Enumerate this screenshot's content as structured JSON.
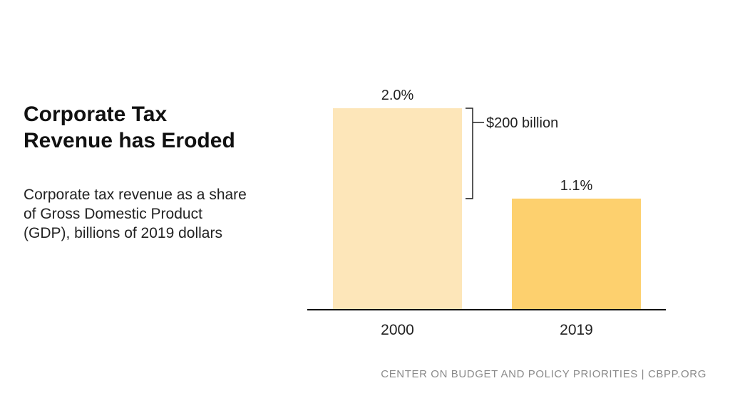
{
  "title": "Corporate Tax Revenue has Eroded",
  "subtitle": "Corporate tax revenue as a share of Gross Domestic Product (GDP), billions of 2019 dollars",
  "footer": "CENTER ON BUDGET AND POLICY PRIORITIES | CBPP.ORG",
  "colors": {
    "bar_2000": "#fde6b9",
    "bar_2019": "#fdd06e",
    "text": "#222222",
    "axis": "#111111"
  },
  "chart_data": {
    "type": "bar",
    "title": "Corporate Tax Revenue has Eroded",
    "xlabel": "",
    "ylabel": "",
    "categories": [
      "2000",
      "2019"
    ],
    "values": [
      2.0,
      1.1
    ],
    "data_labels": [
      "2.0%",
      "1.1%"
    ],
    "ylim": [
      0,
      2.0
    ],
    "annotation": {
      "text": "$200 billion",
      "from_category": "2000",
      "range": [
        1.1,
        2.0
      ]
    }
  }
}
